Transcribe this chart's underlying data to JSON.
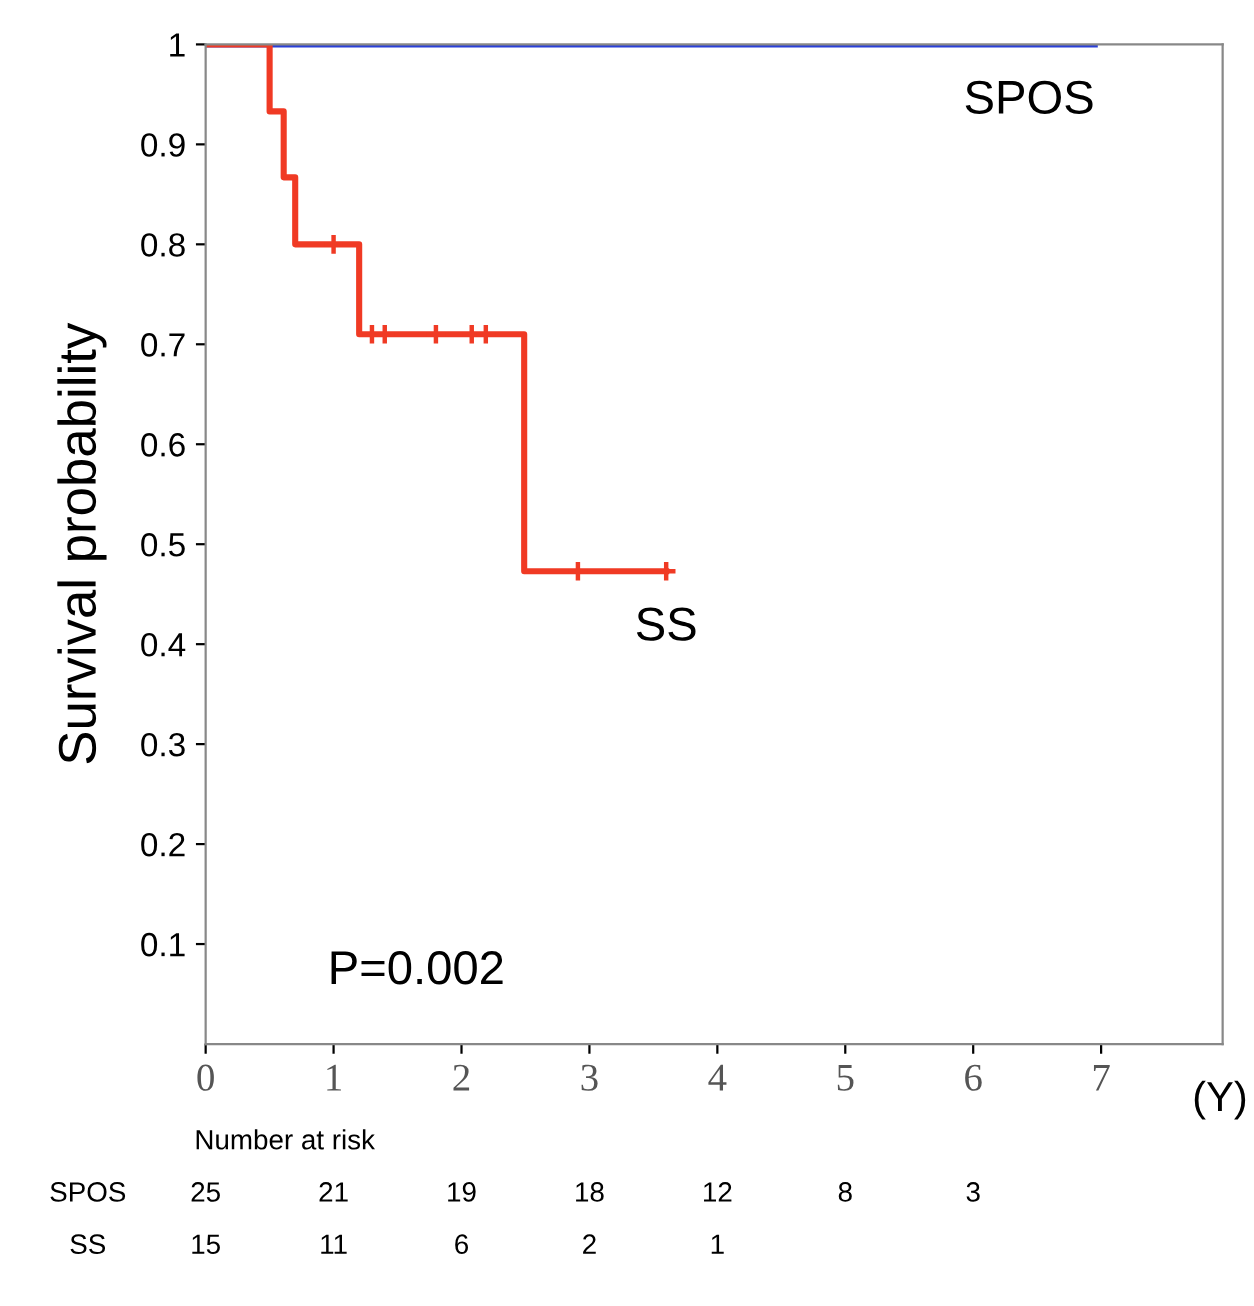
{
  "chart_data": {
    "type": "step",
    "ylabel": "Survival probability",
    "xlabel": "(Y)",
    "xlim": [
      0,
      7.95
    ],
    "ylim": [
      0,
      1
    ],
    "xticks": [
      0,
      1,
      2,
      3,
      4,
      5,
      6,
      7
    ],
    "yticks": [
      {
        "value": 0.1,
        "label": "0.1"
      },
      {
        "value": 0.2,
        "label": "0.2"
      },
      {
        "value": 0.3,
        "label": "0.3"
      },
      {
        "value": 0.4,
        "label": "0.4"
      },
      {
        "value": 0.5,
        "label": "0.5"
      },
      {
        "value": 0.6,
        "label": "0.6"
      },
      {
        "value": 0.7,
        "label": "0.7"
      },
      {
        "value": 0.8,
        "label": "0.8"
      },
      {
        "value": 0.9,
        "label": "0.9"
      },
      1
    ],
    "grid": false,
    "series": [
      {
        "name": "SPOS",
        "color": "#2a3fd6",
        "x": [
          0,
          6.95
        ],
        "values": [
          1,
          1
        ]
      },
      {
        "name": "SS",
        "color": "#f03a24",
        "x": [
          0,
          0.5,
          0.61,
          0.7,
          1.2,
          2.49,
          3.6
        ],
        "values": [
          1,
          0.933,
          0.867,
          0.8,
          0.71,
          0.473,
          0.473
        ]
      },
      {
        "type": "scatter",
        "marker": "cross",
        "color": "#f03a24",
        "x": [
          1.0,
          1.3,
          1.4,
          1.8,
          2.08,
          2.19,
          2.91,
          3.6
        ],
        "values": [
          0.8,
          0.71,
          0.71,
          0.71,
          0.71,
          0.71,
          0.473,
          0.473
        ]
      }
    ],
    "annotations": [
      "P=0.002",
      "Number at risk",
      "SPOS 25 21 19 18 12 8 3",
      "SS 15 11 6 2 1"
    ]
  }
}
